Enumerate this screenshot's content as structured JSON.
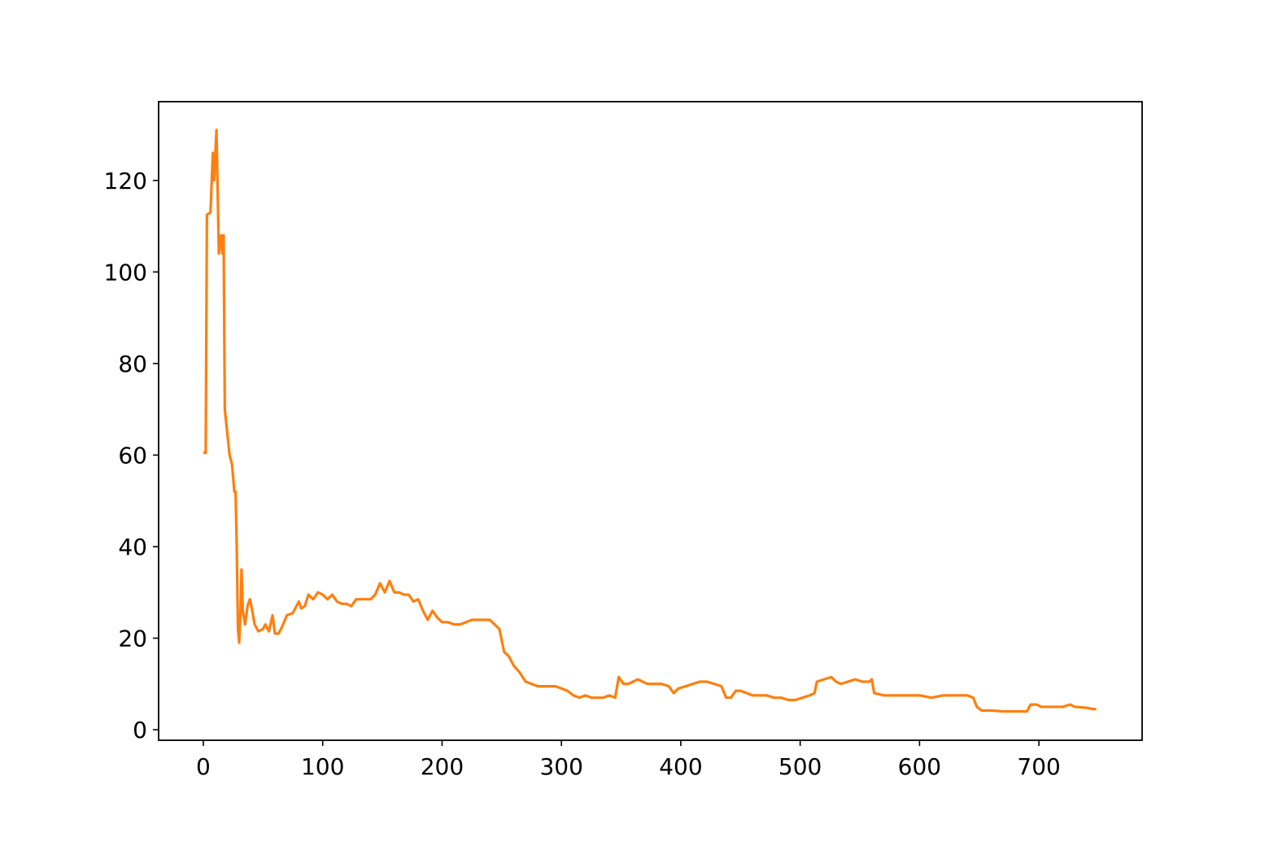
{
  "chart_data": {
    "type": "line",
    "color": "#ff7f0e",
    "x": [
      0,
      2,
      3,
      6,
      8,
      9,
      11,
      12,
      13,
      15,
      16,
      17,
      18,
      20,
      22,
      24,
      26,
      27,
      28,
      29,
      30,
      31,
      32,
      33,
      35,
      37,
      39,
      41,
      43,
      46,
      50,
      52,
      55,
      58,
      60,
      63,
      66,
      70,
      75,
      80,
      82,
      85,
      88,
      92,
      96,
      100,
      104,
      108,
      112,
      116,
      120,
      124,
      128,
      132,
      136,
      140,
      144,
      148,
      152,
      156,
      160,
      164,
      168,
      172,
      176,
      180,
      184,
      188,
      192,
      196,
      200,
      205,
      210,
      215,
      220,
      225,
      230,
      235,
      240,
      244,
      248,
      252,
      256,
      260,
      265,
      270,
      275,
      280,
      285,
      290,
      295,
      300,
      305,
      310,
      315,
      320,
      325,
      330,
      335,
      340,
      345,
      348,
      352,
      356,
      360,
      364,
      368,
      372,
      378,
      384,
      390,
      394,
      398,
      404,
      410,
      416,
      422,
      428,
      434,
      438,
      442,
      446,
      450,
      455,
      460,
      466,
      472,
      478,
      484,
      490,
      496,
      502,
      508,
      512,
      514,
      520,
      526,
      530,
      534,
      540,
      546,
      552,
      558,
      560,
      562,
      570,
      580,
      590,
      600,
      610,
      620,
      630,
      640,
      645,
      648,
      652,
      660,
      670,
      680,
      690,
      693,
      698,
      702,
      710,
      720,
      726,
      730,
      740,
      745,
      748
    ],
    "values": [
      60.5,
      60.5,
      112.5,
      113,
      126,
      120,
      131,
      118,
      104,
      108,
      104,
      108,
      70,
      65,
      60,
      58,
      52,
      52,
      40,
      22,
      19,
      25,
      35,
      26,
      23,
      27,
      28.5,
      26,
      23,
      21.5,
      22,
      23,
      21.5,
      25,
      21,
      21,
      22.5,
      25,
      25.5,
      28,
      26.5,
      27,
      29.5,
      28.5,
      30,
      29.5,
      28.5,
      29.5,
      28,
      27.5,
      27.5,
      27,
      28.5,
      28.5,
      28.5,
      28.5,
      29.5,
      32,
      30,
      32.5,
      30,
      30,
      29.5,
      29.5,
      28,
      28.5,
      26,
      24,
      26,
      24.5,
      23.5,
      23.5,
      23,
      23,
      23.5,
      24,
      24,
      24,
      24,
      23,
      22,
      17,
      16,
      14,
      12.5,
      10.5,
      10,
      9.5,
      9.5,
      9.5,
      9.5,
      9,
      8.5,
      7.5,
      7,
      7.5,
      7,
      7,
      7,
      7.5,
      7,
      11.5,
      10,
      10,
      10.5,
      11,
      10.5,
      10,
      10,
      10,
      9.5,
      8,
      9,
      9.5,
      10,
      10.5,
      10.5,
      10,
      9.5,
      7,
      7,
      8.5,
      8.5,
      8,
      7.5,
      7.5,
      7.5,
      7,
      7,
      6.5,
      6.5,
      7,
      7.5,
      8,
      10.5,
      11,
      11.5,
      10.5,
      10,
      10.5,
      11,
      10.5,
      10.5,
      11,
      8,
      7.5,
      7.5,
      7.5,
      7.5,
      7,
      7.5,
      7.5,
      7.5,
      7,
      5,
      4.2,
      4.2,
      4,
      4,
      4,
      5.5,
      5.5,
      5,
      5,
      5,
      5.5,
      5,
      4.8,
      4.5,
      4.5
    ],
    "xlim": [
      -37.45,
      786.45
    ],
    "ylim": [
      -2.3,
      137.2
    ],
    "xticks": [
      0,
      100,
      200,
      300,
      400,
      500,
      600,
      700
    ],
    "yticks": [
      0,
      20,
      40,
      60,
      80,
      100,
      120
    ]
  }
}
